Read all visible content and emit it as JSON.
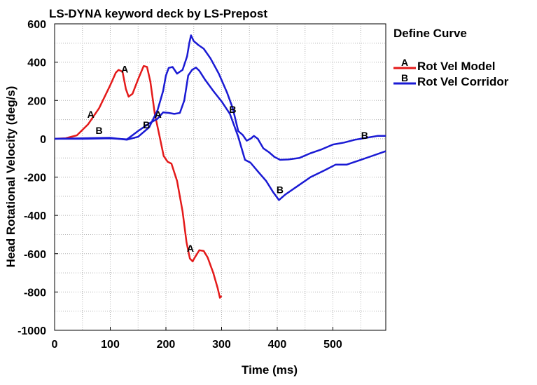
{
  "chart_data": {
    "type": "line",
    "title": "LS-DYNA keyword deck by LS-Prepost",
    "xlabel": "Time (ms)",
    "ylabel": "Head Rotational Velocity (deg/s)",
    "xlim": [
      0,
      595
    ],
    "ylim": [
      -1000,
      600
    ],
    "xticks": [
      0,
      100,
      200,
      300,
      400,
      500
    ],
    "yticks": [
      600,
      400,
      200,
      0,
      -200,
      -400,
      -600,
      -800,
      -1000
    ],
    "grid": true,
    "legend": {
      "title": "Define Curve",
      "placement": "right",
      "entries": [
        {
          "marker": "A",
          "label": "Rot Vel Model",
          "color": "#e41a1a"
        },
        {
          "marker": "B",
          "label": "Rot Vel Corridor",
          "color": "#1a1ad4"
        }
      ]
    },
    "series": [
      {
        "name": "Rot Vel Model",
        "marker": "A",
        "color": "#e41a1a",
        "points": [
          [
            0,
            0
          ],
          [
            20,
            3
          ],
          [
            40,
            18
          ],
          [
            60,
            75
          ],
          [
            80,
            160
          ],
          [
            100,
            280
          ],
          [
            110,
            345
          ],
          [
            115,
            360
          ],
          [
            122,
            350
          ],
          [
            128,
            260
          ],
          [
            133,
            220
          ],
          [
            140,
            235
          ],
          [
            150,
            310
          ],
          [
            160,
            380
          ],
          [
            166,
            375
          ],
          [
            172,
            300
          ],
          [
            180,
            130
          ],
          [
            188,
            20
          ],
          [
            196,
            -90
          ],
          [
            203,
            -120
          ],
          [
            210,
            -130
          ],
          [
            220,
            -220
          ],
          [
            230,
            -380
          ],
          [
            237,
            -540
          ],
          [
            243,
            -625
          ],
          [
            248,
            -640
          ],
          [
            253,
            -615
          ],
          [
            260,
            -582
          ],
          [
            268,
            -586
          ],
          [
            275,
            -620
          ],
          [
            285,
            -700
          ],
          [
            293,
            -780
          ],
          [
            297,
            -830
          ],
          [
            300,
            -820
          ]
        ],
        "marker_points": [
          [
            65,
            110
          ],
          [
            126,
            345
          ],
          [
            244,
            -590
          ]
        ]
      },
      {
        "name": "Rot Vel Corridor",
        "marker": "B",
        "color": "#1a1ad4",
        "points": [
          [
            0,
            0
          ],
          [
            50,
            0
          ],
          [
            100,
            2
          ],
          [
            130,
            -3
          ],
          [
            150,
            40
          ],
          [
            170,
            80
          ],
          [
            185,
            105
          ],
          [
            195,
            138
          ],
          [
            205,
            135
          ],
          [
            215,
            130
          ],
          [
            225,
            135
          ],
          [
            233,
            200
          ],
          [
            240,
            330
          ],
          [
            247,
            360
          ],
          [
            254,
            372
          ],
          [
            260,
            355
          ],
          [
            270,
            310
          ],
          [
            285,
            250
          ],
          [
            300,
            195
          ],
          [
            315,
            130
          ],
          [
            330,
            10
          ],
          [
            342,
            -110
          ],
          [
            352,
            -125
          ],
          [
            365,
            -170
          ],
          [
            380,
            -220
          ],
          [
            393,
            -280
          ],
          [
            403,
            -320
          ],
          [
            415,
            -290
          ],
          [
            435,
            -250
          ],
          [
            460,
            -200
          ],
          [
            485,
            -165
          ],
          [
            505,
            -135
          ],
          [
            525,
            -135
          ],
          [
            545,
            -115
          ],
          [
            570,
            -90
          ],
          [
            595,
            -65
          ]
        ],
        "upper_points": [
          [
            0,
            0
          ],
          [
            100,
            5
          ],
          [
            130,
            -5
          ],
          [
            150,
            10
          ],
          [
            170,
            60
          ],
          [
            185,
            150
          ],
          [
            195,
            250
          ],
          [
            200,
            330
          ],
          [
            205,
            370
          ],
          [
            212,
            375
          ],
          [
            220,
            340
          ],
          [
            230,
            360
          ],
          [
            238,
            430
          ],
          [
            242,
            500
          ],
          [
            245,
            540
          ],
          [
            250,
            510
          ],
          [
            258,
            490
          ],
          [
            268,
            470
          ],
          [
            280,
            420
          ],
          [
            295,
            340
          ],
          [
            310,
            240
          ],
          [
            320,
            160
          ],
          [
            330,
            40
          ],
          [
            338,
            20
          ],
          [
            345,
            -10
          ],
          [
            352,
            0
          ],
          [
            358,
            15
          ],
          [
            365,
            0
          ],
          [
            375,
            -50
          ],
          [
            385,
            -70
          ],
          [
            395,
            -95
          ],
          [
            405,
            -110
          ],
          [
            420,
            -108
          ],
          [
            440,
            -100
          ],
          [
            460,
            -75
          ],
          [
            480,
            -55
          ],
          [
            500,
            -30
          ],
          [
            520,
            -20
          ],
          [
            540,
            -5
          ],
          [
            560,
            5
          ],
          [
            580,
            15
          ],
          [
            595,
            15
          ]
        ],
        "marker_points": [
          [
            80,
            25
          ],
          [
            165,
            55
          ],
          [
            320,
            135
          ],
          [
            405,
            -285
          ],
          [
            557,
            0
          ]
        ]
      }
    ],
    "extra_markers": [
      {
        "text": "A",
        "x": 186,
        "y": 110
      }
    ]
  }
}
